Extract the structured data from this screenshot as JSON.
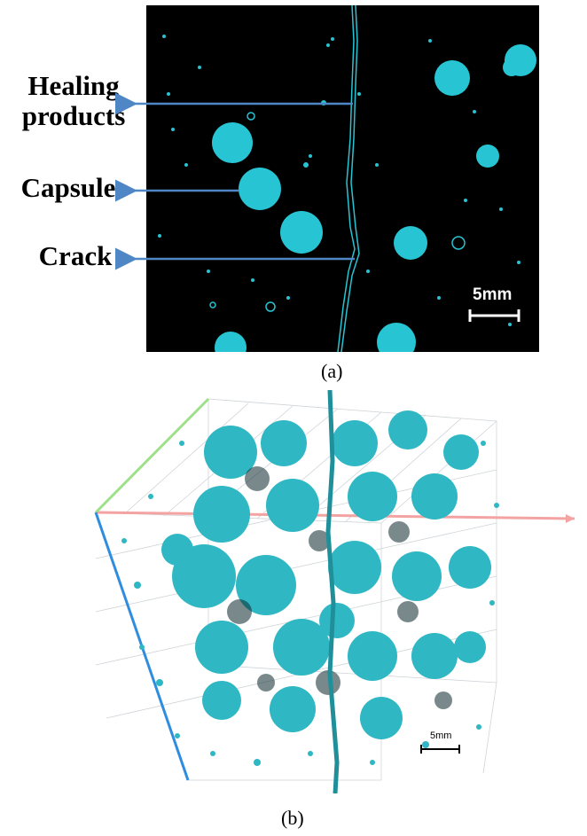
{
  "panel_a": {
    "labels": {
      "healing": "Healing\nproducts",
      "capsule": "Capsule",
      "crack": "Crack"
    },
    "scale_label": "5mm",
    "caption": "(a)",
    "color_feature": "#27c4d4",
    "color_arrow": "#4f86c6"
  },
  "panel_b": {
    "scale_label": "5mm",
    "caption": "(b)",
    "color_feature": "#2fb7c4",
    "axis_colors": {
      "x": "#f4a3a3",
      "y": "#9fe08a",
      "z": "#2f8de0"
    }
  }
}
